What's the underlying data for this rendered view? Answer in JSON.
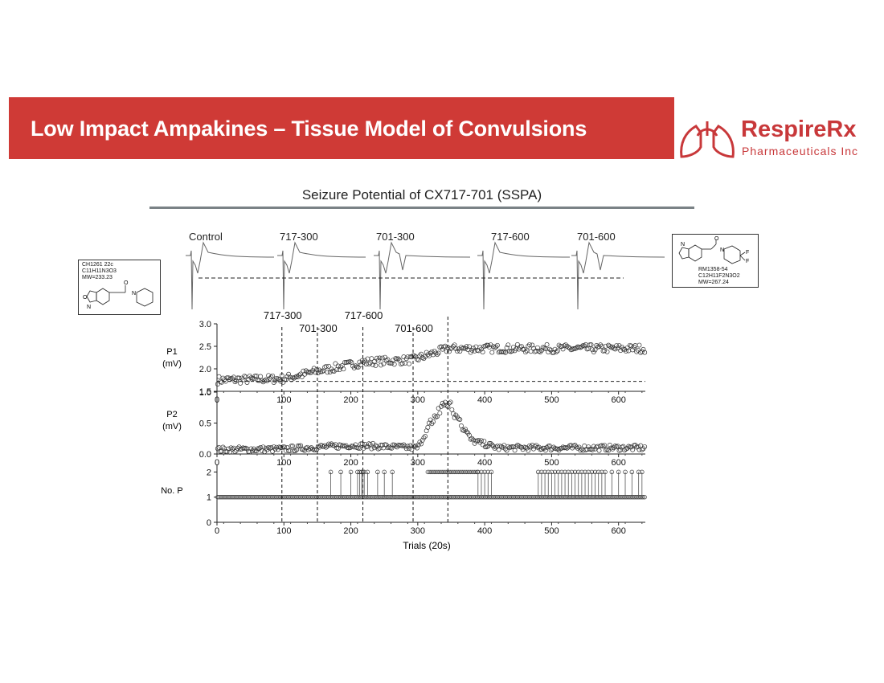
{
  "header": {
    "title": "Low Impact Ampakines – Tissue Model of Convulsions",
    "logo_name": "RespireRx",
    "logo_sub": "Pharmaceuticals Inc",
    "banner_color": "#cf3a36"
  },
  "figure": {
    "title": "Seizure Potential of CX717-701 (SSPA)",
    "trace_labels": [
      "Control",
      "717-300",
      "701-300",
      "717-600",
      "701-600"
    ]
  },
  "molecules": {
    "left": {
      "lines": [
        "CH1261 22c",
        "C11H11N3O3",
        "MW=233.23"
      ],
      "atoms": [
        "O",
        "N",
        "O",
        "N"
      ]
    },
    "right": {
      "lines": [
        "RM1358-54",
        "C12H11F2N3O2",
        "MW=267.24"
      ],
      "atoms": [
        "O",
        "N",
        "N",
        "F",
        "F"
      ]
    }
  },
  "chart_data": {
    "type": "scatter",
    "xlabel": "Trials (20s)",
    "xlim": [
      0,
      640
    ],
    "xticks": [
      0,
      100,
      200,
      300,
      400,
      500,
      600
    ],
    "markers": [
      {
        "label": "717-300",
        "x": 97
      },
      {
        "label": "701-300",
        "x": 150
      },
      {
        "label": "717-600",
        "x": 218
      },
      {
        "label": "701-600",
        "x": 293
      },
      {
        "label": "",
        "x": 345
      }
    ],
    "panels": [
      {
        "name": "P1",
        "ylabel": "P1",
        "yunit": "(mV)",
        "ylim": [
          1.5,
          3.0
        ],
        "yticks": [
          "1.5",
          "2.0",
          "2.5",
          "3.0"
        ],
        "baseline": 1.72,
        "trend": [
          [
            0,
            1.75
          ],
          [
            100,
            1.78
          ],
          [
            150,
            1.95
          ],
          [
            220,
            2.15
          ],
          [
            293,
            2.2
          ],
          [
            345,
            2.45
          ],
          [
            640,
            2.45
          ]
        ]
      },
      {
        "name": "P2",
        "ylabel": "P2",
        "yunit": "(mV)",
        "ylim": [
          0.0,
          1.0
        ],
        "yticks": [
          "0.0",
          "0.5",
          "1.0"
        ],
        "trend": [
          [
            0,
            0.07
          ],
          [
            100,
            0.08
          ],
          [
            200,
            0.14
          ],
          [
            300,
            0.1
          ],
          [
            312,
            0.35
          ],
          [
            335,
            0.75
          ],
          [
            345,
            0.85
          ],
          [
            360,
            0.6
          ],
          [
            380,
            0.22
          ],
          [
            420,
            0.1
          ],
          [
            640,
            0.1
          ]
        ]
      },
      {
        "name": "No. P",
        "ylabel": "No. P",
        "ylim": [
          0,
          2.3
        ],
        "yticks": [
          "0",
          "1",
          "2"
        ],
        "two_pop_ranges": [
          [
            315,
            390
          ]
        ],
        "two_pop_spikes": [
          170,
          185,
          200,
          210,
          213,
          216,
          218,
          220,
          225,
          240,
          250,
          262,
          390,
          395,
          400,
          405,
          410,
          480,
          485,
          490,
          495,
          500,
          505,
          510,
          515,
          520,
          525,
          530,
          535,
          540,
          545,
          550,
          555,
          560,
          565,
          570,
          575,
          580,
          590,
          600,
          610,
          620,
          630,
          635
        ]
      }
    ]
  }
}
